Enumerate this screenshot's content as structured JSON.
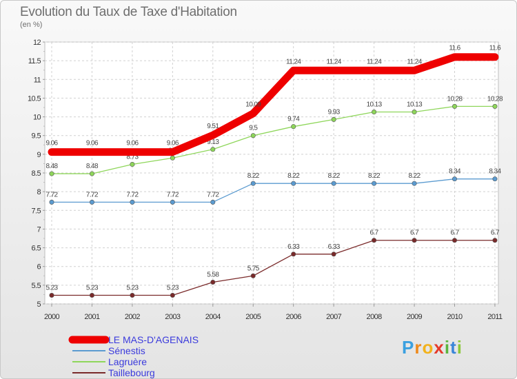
{
  "chart_data": {
    "type": "line",
    "title": "Evolution du Taux de Taxe d'Habitation",
    "subtitle": "(en %)",
    "categories": [
      "2000",
      "2001",
      "2002",
      "2003",
      "2004",
      "2005",
      "2006",
      "2007",
      "2008",
      "2009",
      "2010",
      "2011"
    ],
    "ylim": [
      5,
      12
    ],
    "yticks": [
      "5",
      "5.5",
      "6",
      "6.5",
      "7",
      "7.5",
      "8",
      "8.5",
      "9",
      "9.5",
      "10",
      "10.5",
      "11",
      "11.5",
      "12"
    ],
    "grid": true,
    "legend_position": "bottom-left",
    "series": [
      {
        "name": "LE MAS-D'AGENAIS",
        "color": "#ee0000",
        "values": [
          9.06,
          9.06,
          9.06,
          9.06,
          9.51,
          10.09,
          11.24,
          11.24,
          11.24,
          11.24,
          11.6,
          11.6
        ],
        "labels": [
          "9.06",
          "9.06",
          "9.06",
          "9.06",
          "9.51",
          "10.09",
          "11.24",
          "11.24",
          "11.24",
          "11.24",
          "11.6",
          "11.6"
        ]
      },
      {
        "name": "Sénestis",
        "color": "#5b9bd0",
        "values": [
          7.72,
          7.72,
          7.72,
          7.72,
          7.72,
          8.22,
          8.22,
          8.22,
          8.22,
          8.22,
          8.34,
          8.34
        ],
        "labels": [
          "7.72",
          "7.72",
          "7.72",
          "7.72",
          "7.72",
          "8.22",
          "8.22",
          "8.22",
          "8.22",
          "8.22",
          "8.34",
          "8.34"
        ]
      },
      {
        "name": "Lagruère",
        "color": "#8ed65a",
        "values": [
          8.48,
          8.48,
          8.73,
          8.9,
          9.13,
          9.5,
          9.74,
          9.93,
          10.13,
          10.13,
          10.28,
          10.28
        ],
        "labels": [
          "8.48",
          "8.48",
          "8.73",
          "8.9",
          "9.13",
          "9.5",
          "9.74",
          "9.93",
          "10.13",
          "10.13",
          "10.28",
          "10.28"
        ]
      },
      {
        "name": "Taillebourg",
        "color": "#7a2a2a",
        "values": [
          5.23,
          5.23,
          5.23,
          5.23,
          5.58,
          5.75,
          6.33,
          6.33,
          6.7,
          6.7,
          6.7,
          6.7
        ],
        "labels": [
          "5.23",
          "5.23",
          "5.23",
          "5.23",
          "5.58",
          "5.75",
          "6.33",
          "6.33",
          "6.7",
          "6.7",
          "6.7",
          "6.7"
        ]
      }
    ]
  },
  "branding": {
    "logo_parts": [
      "P",
      "r",
      "o",
      "x",
      "i",
      "t",
      "i"
    ]
  }
}
